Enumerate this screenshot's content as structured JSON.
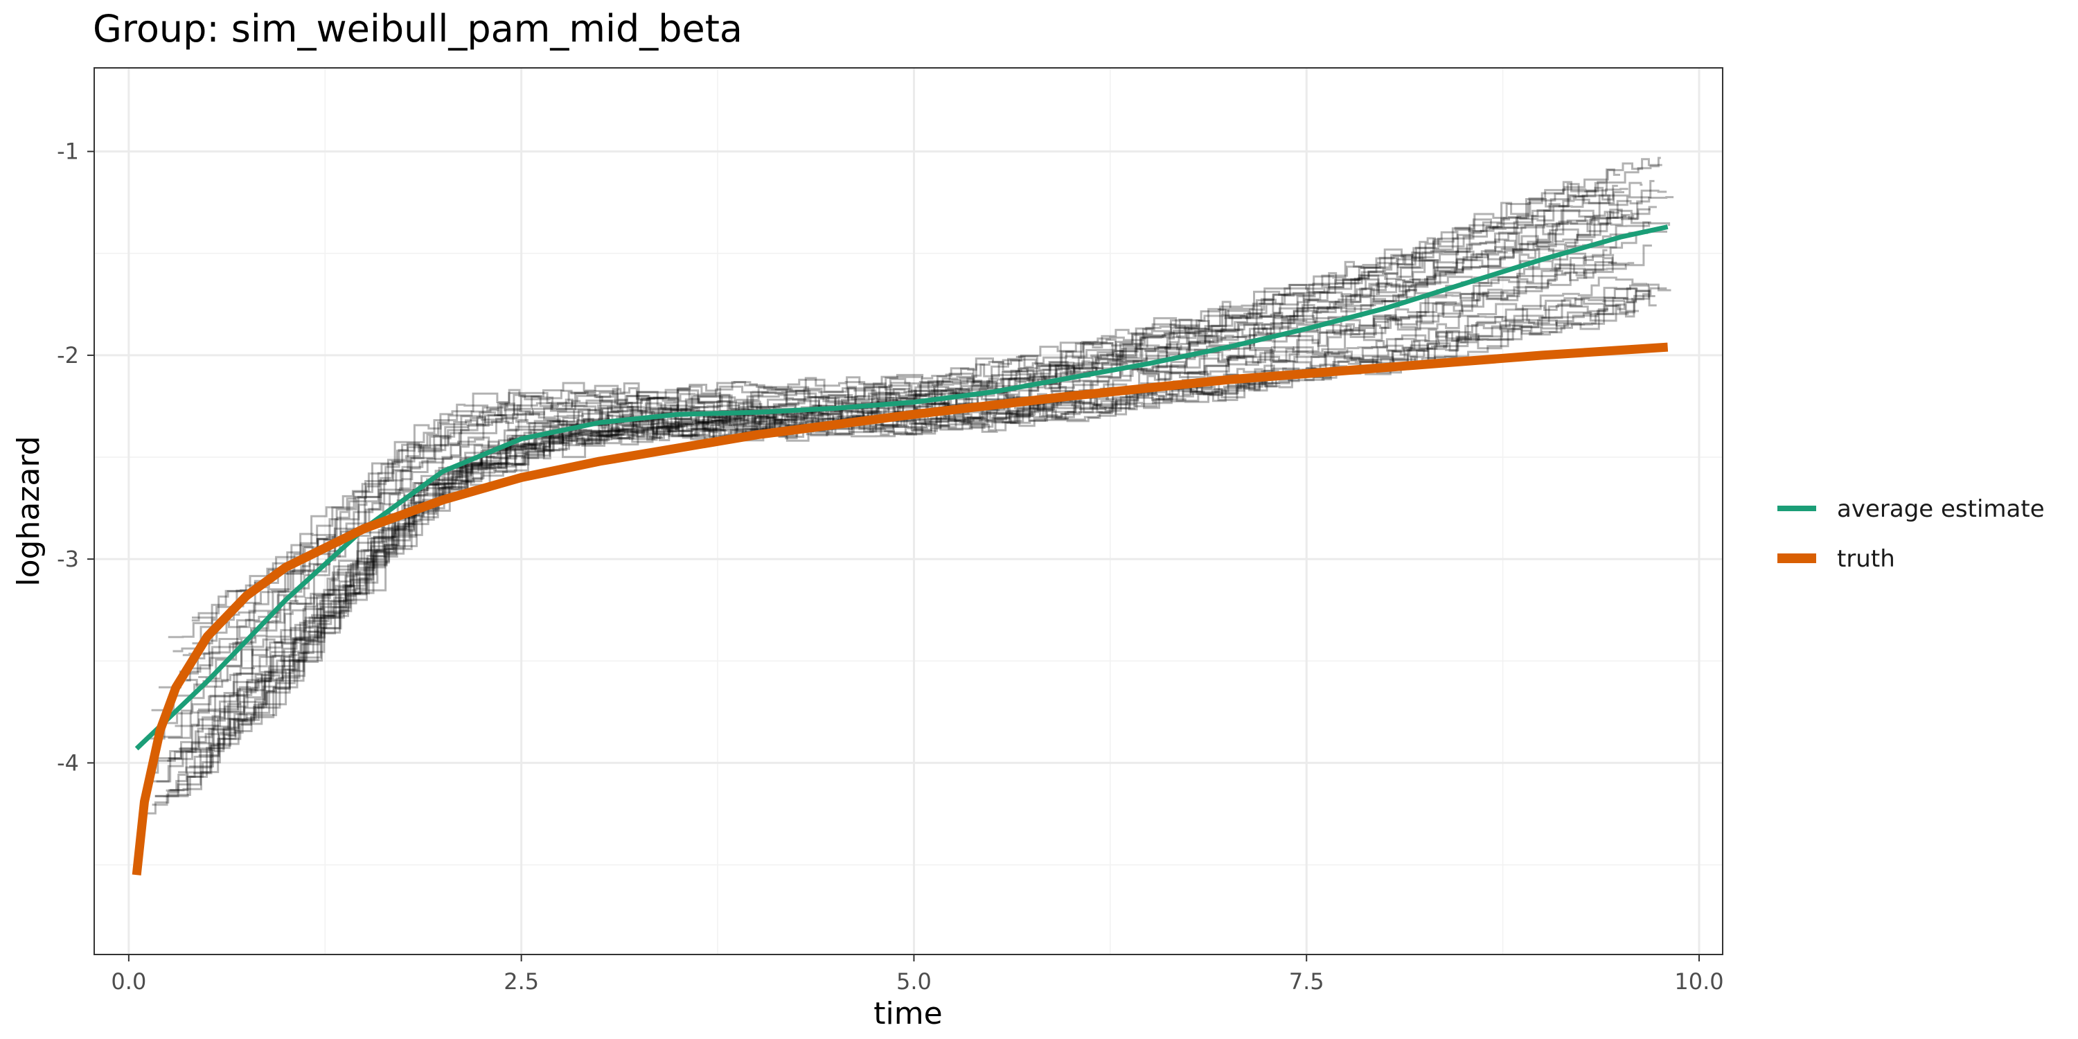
{
  "chart_data": {
    "type": "line",
    "title": "Group: sim_weibull_pam_mid_beta",
    "xlabel": "time",
    "ylabel": "loghazard",
    "xlim": [
      -0.22,
      10.15
    ],
    "ylim": [
      -4.94,
      -0.59
    ],
    "x_ticks": [
      0.0,
      2.5,
      5.0,
      7.5,
      10.0
    ],
    "x_tick_labels": [
      "0.0",
      "2.5",
      "5.0",
      "7.5",
      "10.0"
    ],
    "y_ticks": [
      -4,
      -3,
      -2,
      -1
    ],
    "y_tick_labels": [
      "-4",
      "-3",
      "-2",
      "-1"
    ],
    "grid": true,
    "legend_position": "right",
    "colors": {
      "average_estimate": "#1b9e77",
      "truth": "#d95f02",
      "simulation": "#000000"
    },
    "series": [
      {
        "name": "average estimate",
        "color": "#1b9e77",
        "x": [
          0.05,
          0.5,
          1.0,
          1.5,
          2.0,
          2.5,
          3.0,
          3.5,
          4.0,
          4.5,
          5.0,
          5.5,
          6.0,
          6.5,
          7.0,
          7.5,
          8.0,
          8.5,
          9.0,
          9.5,
          9.8
        ],
        "y": [
          -3.93,
          -3.6,
          -3.2,
          -2.85,
          -2.57,
          -2.41,
          -2.33,
          -2.29,
          -2.28,
          -2.26,
          -2.23,
          -2.18,
          -2.11,
          -2.04,
          -1.96,
          -1.87,
          -1.77,
          -1.65,
          -1.53,
          -1.42,
          -1.37
        ]
      },
      {
        "name": "truth",
        "color": "#d95f02",
        "x": [
          0.05,
          0.1,
          0.2,
          0.3,
          0.5,
          0.75,
          1.0,
          1.5,
          2.0,
          2.5,
          3.0,
          4.0,
          5.0,
          6.0,
          7.0,
          8.0,
          9.0,
          9.8
        ],
        "y": [
          -4.55,
          -4.19,
          -3.84,
          -3.63,
          -3.38,
          -3.18,
          -3.04,
          -2.85,
          -2.71,
          -2.6,
          -2.52,
          -2.39,
          -2.29,
          -2.2,
          -2.12,
          -2.06,
          -2.0,
          -1.96
        ]
      }
    ],
    "simulation_paths": {
      "description_free_count": 36,
      "base_x": [
        0.1,
        0.3,
        0.6,
        0.9,
        1.2,
        1.5,
        1.8,
        2.1,
        2.4,
        2.7,
        3.0,
        3.5,
        4.0,
        4.5,
        5.0,
        5.5,
        6.0,
        6.5,
        7.0,
        7.5,
        8.0,
        8.5,
        9.0,
        9.3,
        9.6
      ],
      "base_y": [
        -3.9,
        -3.75,
        -3.55,
        -3.35,
        -3.1,
        -2.85,
        -2.6,
        -2.45,
        -2.37,
        -2.32,
        -2.3,
        -2.29,
        -2.28,
        -2.27,
        -2.24,
        -2.2,
        -2.13,
        -2.05,
        -1.97,
        -1.87,
        -1.77,
        -1.65,
        -1.53,
        -1.47,
        -1.4
      ],
      "spread_start": 0.45,
      "spread_mid": 0.12,
      "spread_end": 0.38
    }
  }
}
